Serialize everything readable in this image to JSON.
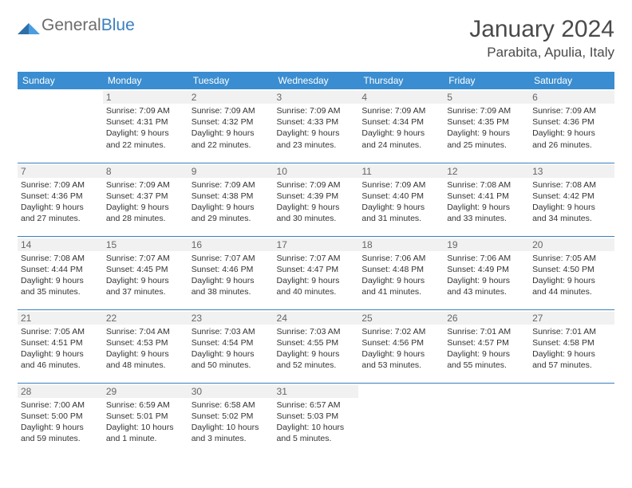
{
  "logo": {
    "text_gray": "General",
    "text_blue": "Blue"
  },
  "title": "January 2024",
  "location": "Parabita, Apulia, Italy",
  "colors": {
    "header_bg": "#3a8dd0",
    "header_text": "#ffffff",
    "rule": "#3a7fbe",
    "daynum_bg": "#f1f1f1",
    "text": "#333333"
  },
  "weekdays": [
    "Sunday",
    "Monday",
    "Tuesday",
    "Wednesday",
    "Thursday",
    "Friday",
    "Saturday"
  ],
  "weeks": [
    [
      {
        "n": "",
        "sunrise": "",
        "sunset": "",
        "daylight": ""
      },
      {
        "n": "1",
        "sunrise": "Sunrise: 7:09 AM",
        "sunset": "Sunset: 4:31 PM",
        "daylight": "Daylight: 9 hours and 22 minutes."
      },
      {
        "n": "2",
        "sunrise": "Sunrise: 7:09 AM",
        "sunset": "Sunset: 4:32 PM",
        "daylight": "Daylight: 9 hours and 22 minutes."
      },
      {
        "n": "3",
        "sunrise": "Sunrise: 7:09 AM",
        "sunset": "Sunset: 4:33 PM",
        "daylight": "Daylight: 9 hours and 23 minutes."
      },
      {
        "n": "4",
        "sunrise": "Sunrise: 7:09 AM",
        "sunset": "Sunset: 4:34 PM",
        "daylight": "Daylight: 9 hours and 24 minutes."
      },
      {
        "n": "5",
        "sunrise": "Sunrise: 7:09 AM",
        "sunset": "Sunset: 4:35 PM",
        "daylight": "Daylight: 9 hours and 25 minutes."
      },
      {
        "n": "6",
        "sunrise": "Sunrise: 7:09 AM",
        "sunset": "Sunset: 4:36 PM",
        "daylight": "Daylight: 9 hours and 26 minutes."
      }
    ],
    [
      {
        "n": "7",
        "sunrise": "Sunrise: 7:09 AM",
        "sunset": "Sunset: 4:36 PM",
        "daylight": "Daylight: 9 hours and 27 minutes."
      },
      {
        "n": "8",
        "sunrise": "Sunrise: 7:09 AM",
        "sunset": "Sunset: 4:37 PM",
        "daylight": "Daylight: 9 hours and 28 minutes."
      },
      {
        "n": "9",
        "sunrise": "Sunrise: 7:09 AM",
        "sunset": "Sunset: 4:38 PM",
        "daylight": "Daylight: 9 hours and 29 minutes."
      },
      {
        "n": "10",
        "sunrise": "Sunrise: 7:09 AM",
        "sunset": "Sunset: 4:39 PM",
        "daylight": "Daylight: 9 hours and 30 minutes."
      },
      {
        "n": "11",
        "sunrise": "Sunrise: 7:09 AM",
        "sunset": "Sunset: 4:40 PM",
        "daylight": "Daylight: 9 hours and 31 minutes."
      },
      {
        "n": "12",
        "sunrise": "Sunrise: 7:08 AM",
        "sunset": "Sunset: 4:41 PM",
        "daylight": "Daylight: 9 hours and 33 minutes."
      },
      {
        "n": "13",
        "sunrise": "Sunrise: 7:08 AM",
        "sunset": "Sunset: 4:42 PM",
        "daylight": "Daylight: 9 hours and 34 minutes."
      }
    ],
    [
      {
        "n": "14",
        "sunrise": "Sunrise: 7:08 AM",
        "sunset": "Sunset: 4:44 PM",
        "daylight": "Daylight: 9 hours and 35 minutes."
      },
      {
        "n": "15",
        "sunrise": "Sunrise: 7:07 AM",
        "sunset": "Sunset: 4:45 PM",
        "daylight": "Daylight: 9 hours and 37 minutes."
      },
      {
        "n": "16",
        "sunrise": "Sunrise: 7:07 AM",
        "sunset": "Sunset: 4:46 PM",
        "daylight": "Daylight: 9 hours and 38 minutes."
      },
      {
        "n": "17",
        "sunrise": "Sunrise: 7:07 AM",
        "sunset": "Sunset: 4:47 PM",
        "daylight": "Daylight: 9 hours and 40 minutes."
      },
      {
        "n": "18",
        "sunrise": "Sunrise: 7:06 AM",
        "sunset": "Sunset: 4:48 PM",
        "daylight": "Daylight: 9 hours and 41 minutes."
      },
      {
        "n": "19",
        "sunrise": "Sunrise: 7:06 AM",
        "sunset": "Sunset: 4:49 PM",
        "daylight": "Daylight: 9 hours and 43 minutes."
      },
      {
        "n": "20",
        "sunrise": "Sunrise: 7:05 AM",
        "sunset": "Sunset: 4:50 PM",
        "daylight": "Daylight: 9 hours and 44 minutes."
      }
    ],
    [
      {
        "n": "21",
        "sunrise": "Sunrise: 7:05 AM",
        "sunset": "Sunset: 4:51 PM",
        "daylight": "Daylight: 9 hours and 46 minutes."
      },
      {
        "n": "22",
        "sunrise": "Sunrise: 7:04 AM",
        "sunset": "Sunset: 4:53 PM",
        "daylight": "Daylight: 9 hours and 48 minutes."
      },
      {
        "n": "23",
        "sunrise": "Sunrise: 7:03 AM",
        "sunset": "Sunset: 4:54 PM",
        "daylight": "Daylight: 9 hours and 50 minutes."
      },
      {
        "n": "24",
        "sunrise": "Sunrise: 7:03 AM",
        "sunset": "Sunset: 4:55 PM",
        "daylight": "Daylight: 9 hours and 52 minutes."
      },
      {
        "n": "25",
        "sunrise": "Sunrise: 7:02 AM",
        "sunset": "Sunset: 4:56 PM",
        "daylight": "Daylight: 9 hours and 53 minutes."
      },
      {
        "n": "26",
        "sunrise": "Sunrise: 7:01 AM",
        "sunset": "Sunset: 4:57 PM",
        "daylight": "Daylight: 9 hours and 55 minutes."
      },
      {
        "n": "27",
        "sunrise": "Sunrise: 7:01 AM",
        "sunset": "Sunset: 4:58 PM",
        "daylight": "Daylight: 9 hours and 57 minutes."
      }
    ],
    [
      {
        "n": "28",
        "sunrise": "Sunrise: 7:00 AM",
        "sunset": "Sunset: 5:00 PM",
        "daylight": "Daylight: 9 hours and 59 minutes."
      },
      {
        "n": "29",
        "sunrise": "Sunrise: 6:59 AM",
        "sunset": "Sunset: 5:01 PM",
        "daylight": "Daylight: 10 hours and 1 minute."
      },
      {
        "n": "30",
        "sunrise": "Sunrise: 6:58 AM",
        "sunset": "Sunset: 5:02 PM",
        "daylight": "Daylight: 10 hours and 3 minutes."
      },
      {
        "n": "31",
        "sunrise": "Sunrise: 6:57 AM",
        "sunset": "Sunset: 5:03 PM",
        "daylight": "Daylight: 10 hours and 5 minutes."
      },
      {
        "n": "",
        "sunrise": "",
        "sunset": "",
        "daylight": ""
      },
      {
        "n": "",
        "sunrise": "",
        "sunset": "",
        "daylight": ""
      },
      {
        "n": "",
        "sunrise": "",
        "sunset": "",
        "daylight": ""
      }
    ]
  ]
}
